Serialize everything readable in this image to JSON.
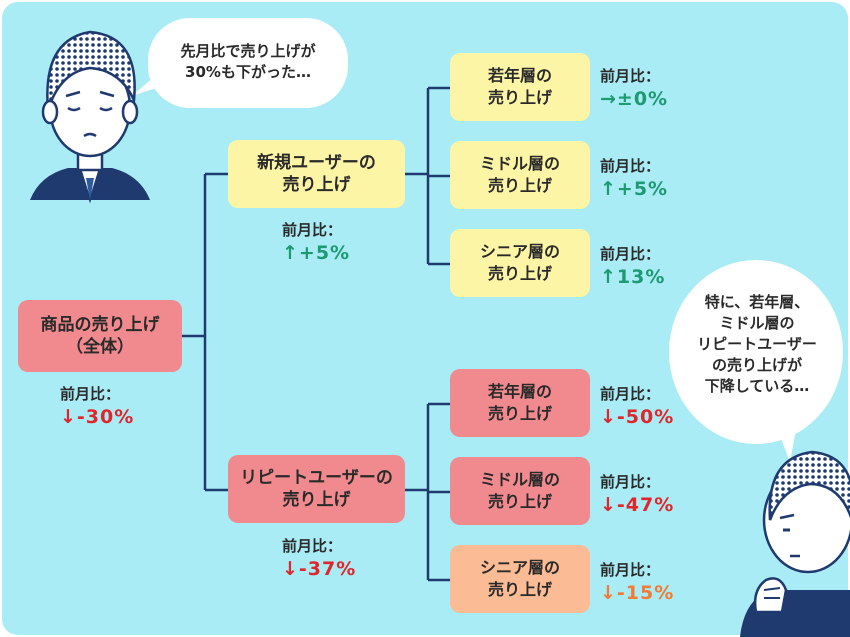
{
  "root": {
    "line1": "商品の売り上げ",
    "line2": "（全体）",
    "cmp_label": "前月比：",
    "cmp_value": "↓-30%"
  },
  "new_users": {
    "line1": "新規ユーザーの",
    "line2": "売り上げ",
    "cmp_label": "前月比：",
    "cmp_value": "↑+5%"
  },
  "repeat_users": {
    "line1": "リピートユーザーの",
    "line2": "売り上げ",
    "cmp_label": "前月比：",
    "cmp_value": "↓-37%"
  },
  "new_segments": [
    {
      "line1": "若年層の",
      "line2": "売り上げ",
      "cmp_label": "前月比：",
      "cmp_value": "→±0%"
    },
    {
      "line1": "ミドル層の",
      "line2": "売り上げ",
      "cmp_label": "前月比：",
      "cmp_value": "↑+5%"
    },
    {
      "line1": "シニア層の",
      "line2": "売り上げ",
      "cmp_label": "前月比：",
      "cmp_value": "↑13%"
    }
  ],
  "repeat_segments": [
    {
      "line1": "若年層の",
      "line2": "売り上げ",
      "cmp_label": "前月比：",
      "cmp_value": "↓-50%"
    },
    {
      "line1": "ミドル層の",
      "line2": "売り上げ",
      "cmp_label": "前月比：",
      "cmp_value": "↓-47%"
    },
    {
      "line1": "シニア層の",
      "line2": "売り上げ",
      "cmp_label": "前月比：",
      "cmp_value": "↓-15%"
    }
  ],
  "bubble_top": {
    "line1": "先月比で売り上げが",
    "line2": "30%も下がった…"
  },
  "bubble_right": {
    "line1": "特に、若年層、",
    "line2": "ミドル層の",
    "line3": "リピートユーザー",
    "line4": "の売り上げが",
    "line5": "下降している…"
  },
  "colors": {
    "background": "#a9ecf5",
    "yellow_node": "#fdf5a6",
    "red_node": "#f08a8e",
    "orange_node": "#fbbb95",
    "connector": "#1f3a6e",
    "positive": "#1d9a72",
    "negative": "#e0262b",
    "mild_negative": "#f27a33"
  },
  "icons": [
    "worried-man-icon",
    "thinking-man-icon"
  ]
}
